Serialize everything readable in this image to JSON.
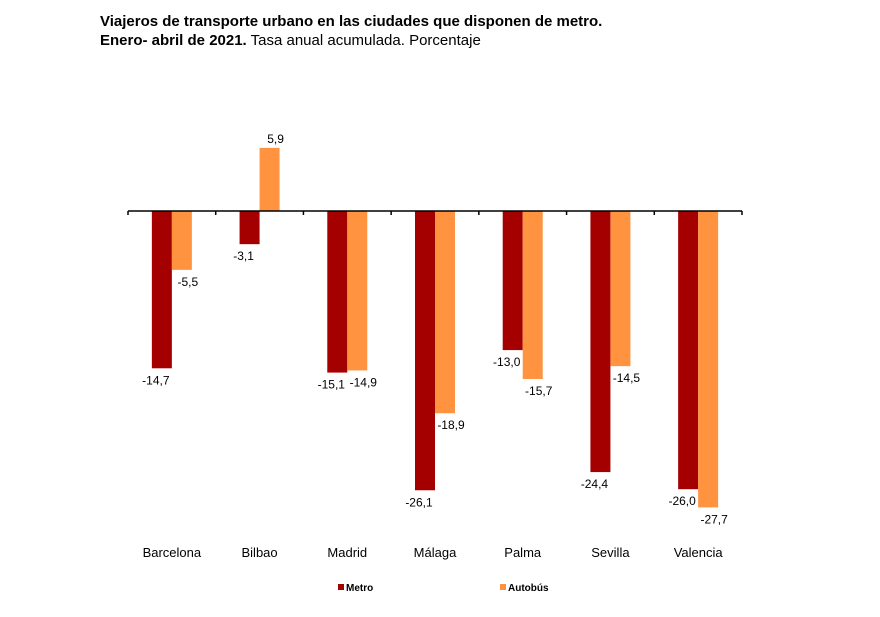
{
  "chart_data": {
    "type": "bar",
    "title": "Viajeros de transporte urbano en las ciudades que disponen de metro.",
    "subtitle_bold": "Enero- abril de 2021.",
    "subtitle": "Tasa anual acumulada. Porcentaje",
    "categories": [
      "Barcelona",
      "Bilbao",
      "Madrid",
      "Málaga",
      "Palma",
      "Sevilla",
      "Valencia"
    ],
    "series": [
      {
        "name": "Metro",
        "color": "#A50000",
        "values": [
          -14.7,
          -3.1,
          -15.1,
          -26.1,
          -13.0,
          -24.4,
          -26.0
        ],
        "labels": [
          "-14,7",
          "-3,1",
          "-15,1",
          "-26,1",
          "-13,0",
          "-24,4",
          "-26,0"
        ]
      },
      {
        "name": "Autobús",
        "color": "#FF9340",
        "values": [
          -5.5,
          5.9,
          -14.9,
          -18.9,
          -15.7,
          -14.5,
          -27.7
        ],
        "labels": [
          "-5,5",
          "5,9",
          "-14,9",
          "-18,9",
          "-15,7",
          "-14,5",
          "-27,7"
        ]
      }
    ],
    "xlabel": "",
    "ylabel": "",
    "ylim": [
      -28,
      6
    ],
    "grid": false,
    "legend": "bottom"
  }
}
